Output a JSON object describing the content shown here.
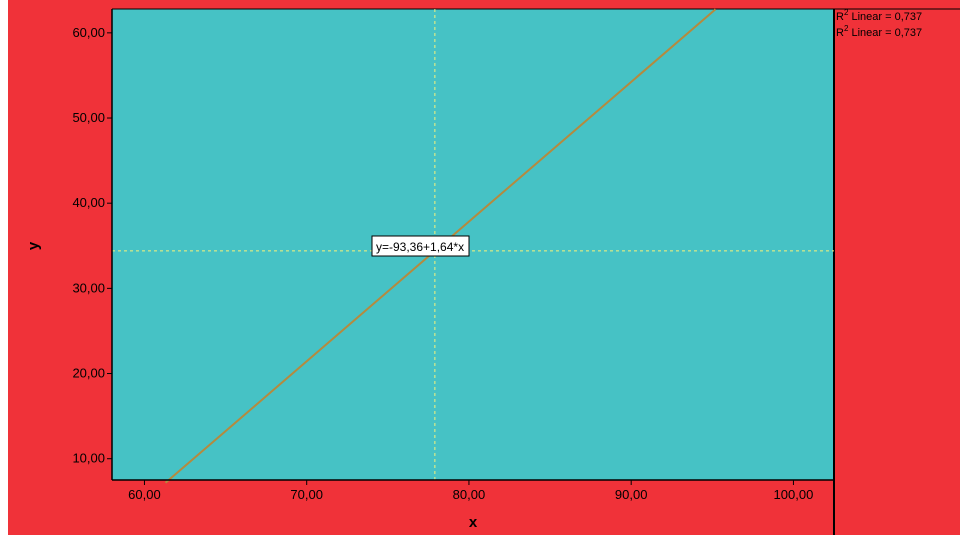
{
  "chart_data": {
    "type": "line",
    "title": "",
    "xlabel": "x",
    "ylabel": "y",
    "xlim": [
      58,
      102.5
    ],
    "ylim": [
      7.5,
      62.8
    ],
    "x_ticks": [
      60,
      70,
      80,
      90,
      100
    ],
    "y_ticks": [
      10,
      20,
      30,
      40,
      50,
      60
    ],
    "x_tick_labels": [
      "60,00",
      "70,00",
      "80,00",
      "90,00",
      "100,00"
    ],
    "y_tick_labels": [
      "10,00",
      "20,00",
      "30,00",
      "40,00",
      "50,00",
      "60,00"
    ],
    "fit_line": {
      "intercept": -93.36,
      "slope": 1.64,
      "x_range": [
        61.3,
        95.2
      ]
    },
    "equation_label": "y=-93,36+1,64*x",
    "mean_x": 77.9,
    "mean_y": 34.4,
    "legend": [
      {
        "label": "R² Linear = 0,737"
      },
      {
        "label": "R² Linear = 0,737"
      }
    ],
    "legend_placement": "right",
    "grid": false
  },
  "colors": {
    "background": "#f03239",
    "plot_area": "#46c2c5",
    "fit_line": "#b58a3e",
    "reference_lines": "#f5f27a"
  }
}
